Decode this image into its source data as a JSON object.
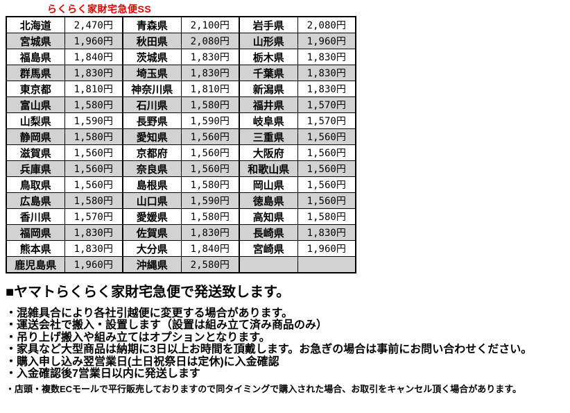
{
  "title": "らくらく家財宅急便SS",
  "shipping_table": {
    "rows": [
      [
        "北海道",
        "2,470円",
        "青森県",
        "2,100円",
        "岩手県",
        "2,080円"
      ],
      [
        "宮城県",
        "1,960円",
        "秋田県",
        "2,080円",
        "山形県",
        "1,960円"
      ],
      [
        "福島県",
        "1,840円",
        "茨城県",
        "1,830円",
        "栃木県",
        "1,830円"
      ],
      [
        "群馬県",
        "1,830円",
        "埼玉県",
        "1,830円",
        "千葉県",
        "1,830円"
      ],
      [
        "東京都",
        "1,810円",
        "神奈川県",
        "1,810円",
        "新潟県",
        "1,830円"
      ],
      [
        "富山県",
        "1,580円",
        "石川県",
        "1,580円",
        "福井県",
        "1,570円"
      ],
      [
        "山梨県",
        "1,590円",
        "長野県",
        "1,590円",
        "岐阜県",
        "1,570円"
      ],
      [
        "静岡県",
        "1,580円",
        "愛知県",
        "1,560円",
        "三重県",
        "1,560円"
      ],
      [
        "滋賀県",
        "1,560円",
        "京都府",
        "1,560円",
        "大阪府",
        "1,560円"
      ],
      [
        "兵庫県",
        "1,560円",
        "奈良県",
        "1,560円",
        "和歌山県",
        "1,560円"
      ],
      [
        "鳥取県",
        "1,560円",
        "島根県",
        "1,580円",
        "岡山県",
        "1,560円"
      ],
      [
        "広島県",
        "1,580円",
        "山口県",
        "1,590円",
        "徳島県",
        "1,560円"
      ],
      [
        "香川県",
        "1,570円",
        "愛媛県",
        "1,580円",
        "高知県",
        "1,580円"
      ],
      [
        "福岡県",
        "1,830円",
        "佐賀県",
        "1,830円",
        "長崎県",
        "1,830円"
      ],
      [
        "熊本県",
        "1,830円",
        "大分県",
        "1,840円",
        "宮崎県",
        "1,960円"
      ],
      [
        "鹿児島県",
        "1,960円",
        "沖縄県",
        "2,580円",
        "",
        ""
      ]
    ]
  },
  "notes": {
    "heading": "■ヤマトらくらく家財宅急便で発送致します。",
    "bullets": [
      "・混雑具合により各社引越便に変更する場合があります。",
      "・運送会社で搬入・設置します（設置は組み立て済み商品のみ）",
      "・吊り上げ搬入や組み立てはオプションとなります。",
      "・家具など大型商品は納期に3日以上お時間を頂戴します。お急ぎの場合は事前にお問い合わせください。",
      "・購入申し込み翌営業日(土日祝祭日は定休)に入金確認",
      "・入金確認後7営業日以内に発送します"
    ],
    "fine_print": "・店頭・複数ECモールで平行販売しておりますので同タイミングで購入された場合、お取引をキャンセル頂く場合があります。"
  },
  "colors": {
    "title_red": "#e60000",
    "row_shade": "#d2d2d2",
    "border": "#000000",
    "background": "#ffffff"
  }
}
